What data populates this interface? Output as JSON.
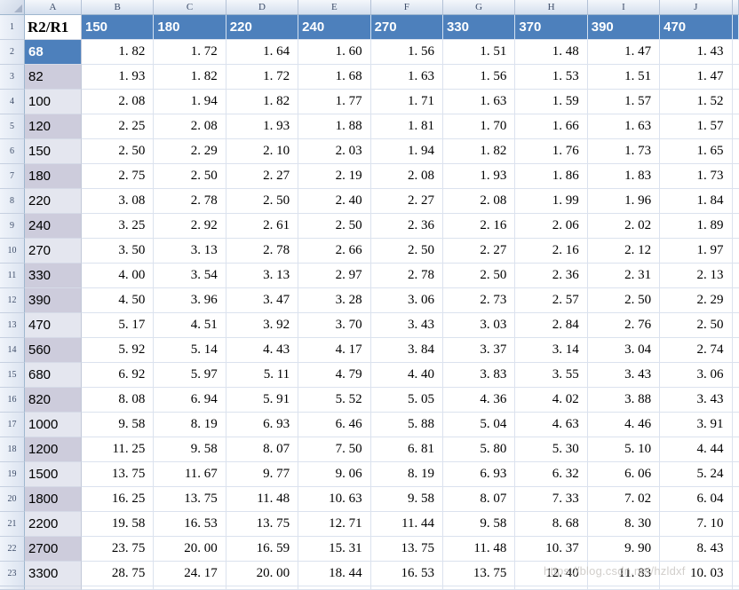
{
  "colors": {
    "header_blue": "#4d80bc",
    "band_dark": "#cdccdc",
    "band_light": "#e4e6ef",
    "gridline": "#dbe2ee"
  },
  "column_headers": [
    "A",
    "B",
    "C",
    "D",
    "E",
    "F",
    "G",
    "H",
    "I",
    "J"
  ],
  "table": {
    "rows": [
      {
        "r": "1",
        "type": "header",
        "label": "R2/R1",
        "values": [
          "150",
          "180",
          "220",
          "240",
          "270",
          "330",
          "370",
          "390",
          "470"
        ]
      },
      {
        "r": "2",
        "shade": "blue",
        "label": "68",
        "values": [
          "1.82",
          "1.72",
          "1.64",
          "1.60",
          "1.56",
          "1.51",
          "1.48",
          "1.47",
          "1.43"
        ]
      },
      {
        "r": "3",
        "shade": "dark",
        "label": "82",
        "values": [
          "1.93",
          "1.82",
          "1.72",
          "1.68",
          "1.63",
          "1.56",
          "1.53",
          "1.51",
          "1.47"
        ]
      },
      {
        "r": "4",
        "shade": "light",
        "label": "100",
        "values": [
          "2.08",
          "1.94",
          "1.82",
          "1.77",
          "1.71",
          "1.63",
          "1.59",
          "1.57",
          "1.52"
        ]
      },
      {
        "r": "5",
        "shade": "dark",
        "label": "120",
        "values": [
          "2.25",
          "2.08",
          "1.93",
          "1.88",
          "1.81",
          "1.70",
          "1.66",
          "1.63",
          "1.57"
        ]
      },
      {
        "r": "6",
        "shade": "light",
        "label": "150",
        "values": [
          "2.50",
          "2.29",
          "2.10",
          "2.03",
          "1.94",
          "1.82",
          "1.76",
          "1.73",
          "1.65"
        ]
      },
      {
        "r": "7",
        "shade": "dark",
        "label": "180",
        "values": [
          "2.75",
          "2.50",
          "2.27",
          "2.19",
          "2.08",
          "1.93",
          "1.86",
          "1.83",
          "1.73"
        ]
      },
      {
        "r": "8",
        "shade": "light",
        "label": "220",
        "values": [
          "3.08",
          "2.78",
          "2.50",
          "2.40",
          "2.27",
          "2.08",
          "1.99",
          "1.96",
          "1.84"
        ]
      },
      {
        "r": "9",
        "shade": "dark",
        "label": "240",
        "values": [
          "3.25",
          "2.92",
          "2.61",
          "2.50",
          "2.36",
          "2.16",
          "2.06",
          "2.02",
          "1.89"
        ]
      },
      {
        "r": "10",
        "shade": "light",
        "label": "270",
        "values": [
          "3.50",
          "3.13",
          "2.78",
          "2.66",
          "2.50",
          "2.27",
          "2.16",
          "2.12",
          "1.97"
        ]
      },
      {
        "r": "11",
        "shade": "dark",
        "label": "330",
        "values": [
          "4.00",
          "3.54",
          "3.13",
          "2.97",
          "2.78",
          "2.50",
          "2.36",
          "2.31",
          "2.13"
        ]
      },
      {
        "r": "12",
        "shade": "dark",
        "label": "390",
        "values": [
          "4.50",
          "3.96",
          "3.47",
          "3.28",
          "3.06",
          "2.73",
          "2.57",
          "2.50",
          "2.29"
        ]
      },
      {
        "r": "13",
        "shade": "light",
        "label": "470",
        "values": [
          "5.17",
          "4.51",
          "3.92",
          "3.70",
          "3.43",
          "3.03",
          "2.84",
          "2.76",
          "2.50"
        ]
      },
      {
        "r": "14",
        "shade": "dark",
        "label": "560",
        "values": [
          "5.92",
          "5.14",
          "4.43",
          "4.17",
          "3.84",
          "3.37",
          "3.14",
          "3.04",
          "2.74"
        ]
      },
      {
        "r": "15",
        "shade": "light",
        "label": "680",
        "values": [
          "6.92",
          "5.97",
          "5.11",
          "4.79",
          "4.40",
          "3.83",
          "3.55",
          "3.43",
          "3.06"
        ]
      },
      {
        "r": "16",
        "shade": "dark",
        "label": "820",
        "values": [
          "8.08",
          "6.94",
          "5.91",
          "5.52",
          "5.05",
          "4.36",
          "4.02",
          "3.88",
          "3.43"
        ]
      },
      {
        "r": "17",
        "shade": "light",
        "label": "1000",
        "values": [
          "9.58",
          "8.19",
          "6.93",
          "6.46",
          "5.88",
          "5.04",
          "4.63",
          "4.46",
          "3.91"
        ]
      },
      {
        "r": "18",
        "shade": "dark",
        "label": "1200",
        "values": [
          "11.25",
          "9.58",
          "8.07",
          "7.50",
          "6.81",
          "5.80",
          "5.30",
          "5.10",
          "4.44"
        ]
      },
      {
        "r": "19",
        "shade": "light",
        "label": "1500",
        "values": [
          "13.75",
          "11.67",
          "9.77",
          "9.06",
          "8.19",
          "6.93",
          "6.32",
          "6.06",
          "5.24"
        ]
      },
      {
        "r": "20",
        "shade": "dark",
        "label": "1800",
        "values": [
          "16.25",
          "13.75",
          "11.48",
          "10.63",
          "9.58",
          "8.07",
          "7.33",
          "7.02",
          "6.04"
        ]
      },
      {
        "r": "21",
        "shade": "light",
        "label": "2200",
        "values": [
          "19.58",
          "16.53",
          "13.75",
          "12.71",
          "11.44",
          "9.58",
          "8.68",
          "8.30",
          "7.10"
        ]
      },
      {
        "r": "22",
        "shade": "dark",
        "label": "2700",
        "values": [
          "23.75",
          "20.00",
          "16.59",
          "15.31",
          "13.75",
          "11.48",
          "10.37",
          "9.90",
          "8.43"
        ]
      },
      {
        "r": "23",
        "shade": "light",
        "label": "3300",
        "values": [
          "28.75",
          "24.17",
          "20.00",
          "18.44",
          "16.53",
          "13.75",
          "12.40",
          "11.83",
          "10.03"
        ]
      }
    ]
  },
  "watermark": {
    "text": "https://blog.csdn.net/hzldxf"
  }
}
